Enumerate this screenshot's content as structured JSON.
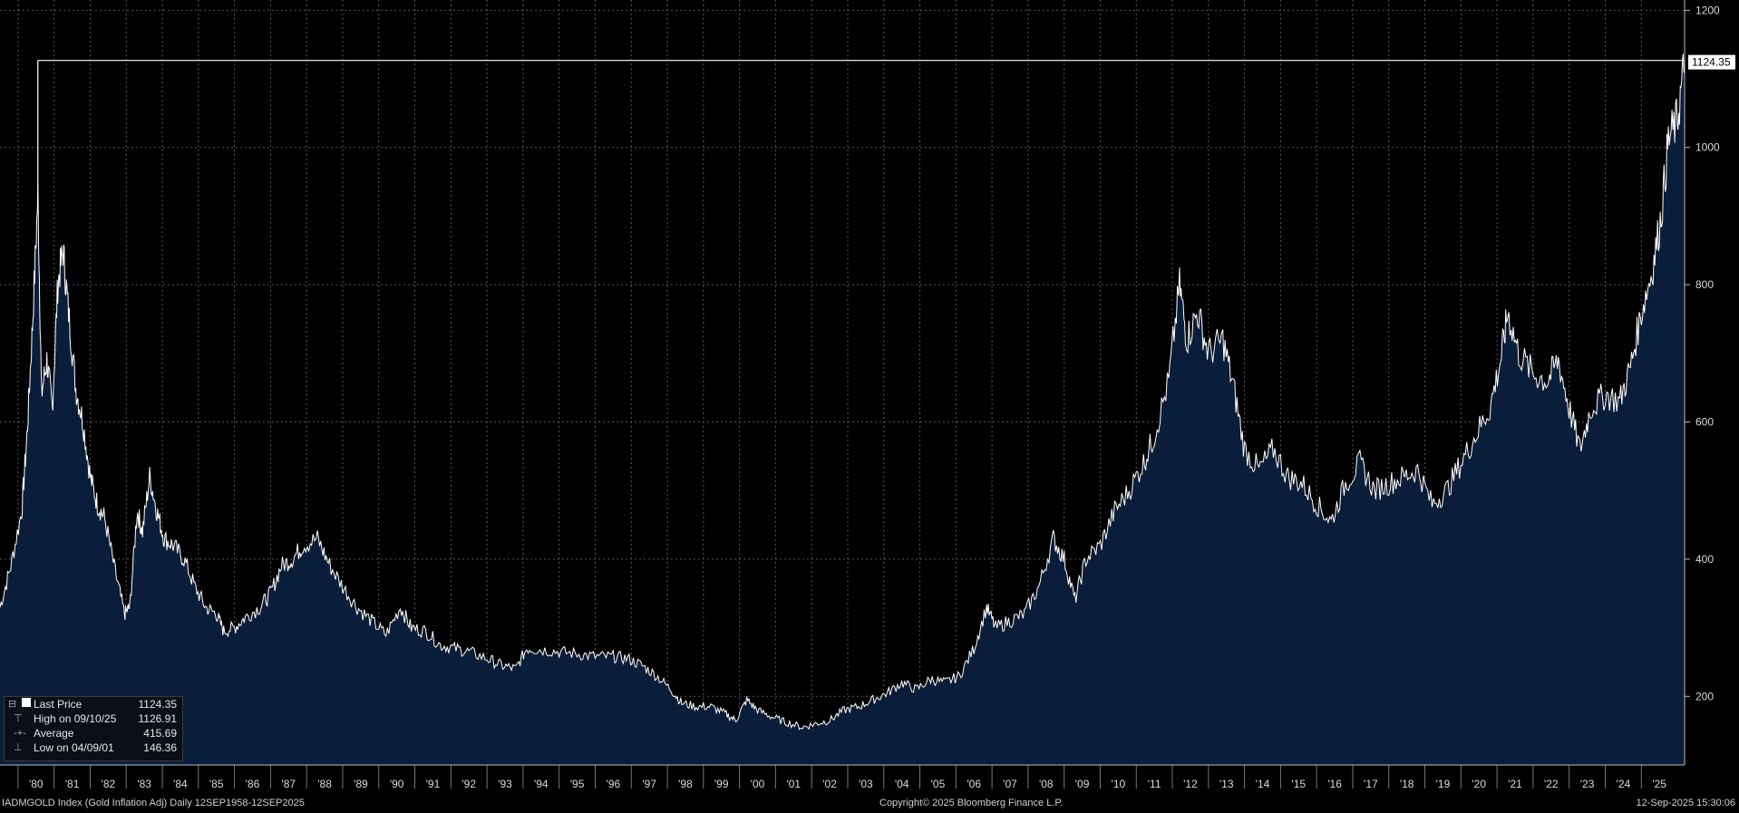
{
  "chart_data": {
    "type": "area",
    "series": [
      {
        "name": "Gold Inflation Adj",
        "points": [
          [
            1979.0,
            330
          ],
          [
            1979.3,
            390
          ],
          [
            1979.6,
            470
          ],
          [
            1979.75,
            580
          ],
          [
            1979.9,
            740
          ],
          [
            1980.05,
            930
          ],
          [
            1980.15,
            640
          ],
          [
            1980.3,
            690
          ],
          [
            1980.45,
            620
          ],
          [
            1980.6,
            800
          ],
          [
            1980.75,
            850
          ],
          [
            1980.9,
            760
          ],
          [
            1981.1,
            650
          ],
          [
            1981.3,
            600
          ],
          [
            1981.5,
            520
          ],
          [
            1981.7,
            480
          ],
          [
            1981.9,
            460
          ],
          [
            1982.2,
            380
          ],
          [
            1982.45,
            320
          ],
          [
            1982.6,
            330
          ],
          [
            1982.8,
            470
          ],
          [
            1982.95,
            440
          ],
          [
            1983.15,
            520
          ],
          [
            1983.35,
            470
          ],
          [
            1983.55,
            430
          ],
          [
            1983.8,
            420
          ],
          [
            1984.1,
            400
          ],
          [
            1984.4,
            360
          ],
          [
            1984.7,
            330
          ],
          [
            1985.0,
            320
          ],
          [
            1985.2,
            295
          ],
          [
            1985.5,
            300
          ],
          [
            1985.8,
            315
          ],
          [
            1986.2,
            330
          ],
          [
            1986.5,
            350
          ],
          [
            1986.8,
            390
          ],
          [
            1987.1,
            400
          ],
          [
            1987.4,
            420
          ],
          [
            1987.8,
            430
          ],
          [
            1988.1,
            395
          ],
          [
            1988.5,
            360
          ],
          [
            1988.9,
            330
          ],
          [
            1989.3,
            310
          ],
          [
            1989.7,
            290
          ],
          [
            1990.1,
            330
          ],
          [
            1990.4,
            300
          ],
          [
            1990.8,
            295
          ],
          [
            1991.2,
            275
          ],
          [
            1991.6,
            270
          ],
          [
            1992.0,
            265
          ],
          [
            1992.5,
            255
          ],
          [
            1992.9,
            245
          ],
          [
            1993.3,
            240
          ],
          [
            1993.6,
            270
          ],
          [
            1994.0,
            268
          ],
          [
            1994.5,
            265
          ],
          [
            1995.0,
            262
          ],
          [
            1995.5,
            258
          ],
          [
            1996.0,
            258
          ],
          [
            1996.4,
            255
          ],
          [
            1996.8,
            245
          ],
          [
            1997.2,
            230
          ],
          [
            1997.6,
            210
          ],
          [
            1997.9,
            190
          ],
          [
            1998.3,
            185
          ],
          [
            1998.7,
            185
          ],
          [
            1999.1,
            175
          ],
          [
            1999.4,
            165
          ],
          [
            1999.7,
            195
          ],
          [
            2000.0,
            180
          ],
          [
            2000.4,
            170
          ],
          [
            2000.8,
            162
          ],
          [
            2001.25,
            155
          ],
          [
            2001.6,
            160
          ],
          [
            2002.0,
            165
          ],
          [
            2002.4,
            180
          ],
          [
            2002.8,
            185
          ],
          [
            2003.2,
            195
          ],
          [
            2003.6,
            205
          ],
          [
            2004.0,
            220
          ],
          [
            2004.4,
            210
          ],
          [
            2004.8,
            225
          ],
          [
            2005.2,
            220
          ],
          [
            2005.6,
            230
          ],
          [
            2006.0,
            270
          ],
          [
            2006.35,
            330
          ],
          [
            2006.6,
            300
          ],
          [
            2007.0,
            310
          ],
          [
            2007.4,
            320
          ],
          [
            2007.8,
            360
          ],
          [
            2008.2,
            430
          ],
          [
            2008.5,
            400
          ],
          [
            2008.8,
            340
          ],
          [
            2009.1,
            400
          ],
          [
            2009.5,
            420
          ],
          [
            2009.9,
            470
          ],
          [
            2010.3,
            500
          ],
          [
            2010.7,
            540
          ],
          [
            2011.0,
            580
          ],
          [
            2011.4,
            660
          ],
          [
            2011.7,
            800
          ],
          [
            2011.9,
            720
          ],
          [
            2012.2,
            760
          ],
          [
            2012.5,
            700
          ],
          [
            2012.9,
            720
          ],
          [
            2013.2,
            650
          ],
          [
            2013.5,
            560
          ],
          [
            2013.9,
            530
          ],
          [
            2014.3,
            560
          ],
          [
            2014.7,
            520
          ],
          [
            2015.1,
            510
          ],
          [
            2015.5,
            480
          ],
          [
            2015.9,
            455
          ],
          [
            2016.3,
            510
          ],
          [
            2016.7,
            540
          ],
          [
            2017.1,
            500
          ],
          [
            2017.5,
            510
          ],
          [
            2017.9,
            520
          ],
          [
            2018.3,
            530
          ],
          [
            2018.7,
            480
          ],
          [
            2019.1,
            500
          ],
          [
            2019.5,
            540
          ],
          [
            2019.9,
            580
          ],
          [
            2020.3,
            620
          ],
          [
            2020.6,
            690
          ],
          [
            2020.8,
            760
          ],
          [
            2021.1,
            700
          ],
          [
            2021.5,
            670
          ],
          [
            2021.9,
            660
          ],
          [
            2022.2,
            690
          ],
          [
            2022.5,
            620
          ],
          [
            2022.8,
            560
          ],
          [
            2023.1,
            620
          ],
          [
            2023.5,
            640
          ],
          [
            2023.9,
            630
          ],
          [
            2024.2,
            680
          ],
          [
            2024.5,
            760
          ],
          [
            2024.8,
            820
          ],
          [
            2025.05,
            900
          ],
          [
            2025.25,
            1010
          ],
          [
            2025.5,
            1040
          ],
          [
            2025.7,
            1124.35
          ]
        ]
      }
    ],
    "ylim": [
      100,
      1215
    ],
    "xlim": [
      1979.0,
      2025.7
    ],
    "y_ticks": [
      200,
      400,
      600,
      800,
      1000,
      1200
    ],
    "x_ticks": [
      "'80",
      "'81",
      "'82",
      "'83",
      "'84",
      "'85",
      "'86",
      "'87",
      "'88",
      "'89",
      "'90",
      "'91",
      "'92",
      "'93",
      "'94",
      "'95",
      "'96",
      "'97",
      "'98",
      "'99",
      "'00",
      "'01",
      "'02",
      "'03",
      "'04",
      "'05",
      "'06",
      "'07",
      "'08",
      "'09",
      "'10",
      "'11",
      "'12",
      "'13",
      "'14",
      "'15",
      "'16",
      "'17",
      "'18",
      "'19",
      "'20",
      "'21",
      "'22",
      "'23",
      "'24",
      "'25"
    ],
    "last_price_label": "1124.35",
    "high_line_value": 1126.91,
    "grid": true,
    "legend_position": "bottom-left"
  },
  "legend": {
    "rows": [
      {
        "label": "Last Price",
        "value": "1124.35"
      },
      {
        "label": "High on 09/10/25",
        "value": "1126.91"
      },
      {
        "label": "Average",
        "value": "415.69"
      },
      {
        "label": "Low on 04/09/01",
        "value": "146.36"
      }
    ]
  },
  "footer": {
    "left": "IADMGOLD Index (Gold Inflation Adj)  Daily 12SEP1958-12SEP2025",
    "center": "Copyright© 2025 Bloomberg Finance L.P.",
    "right": "12-Sep-2025 15:30:06"
  },
  "colors": {
    "area_fill": "#0a1e3b",
    "line": "#ffffff",
    "grid": "#555555",
    "background": "#000000"
  }
}
